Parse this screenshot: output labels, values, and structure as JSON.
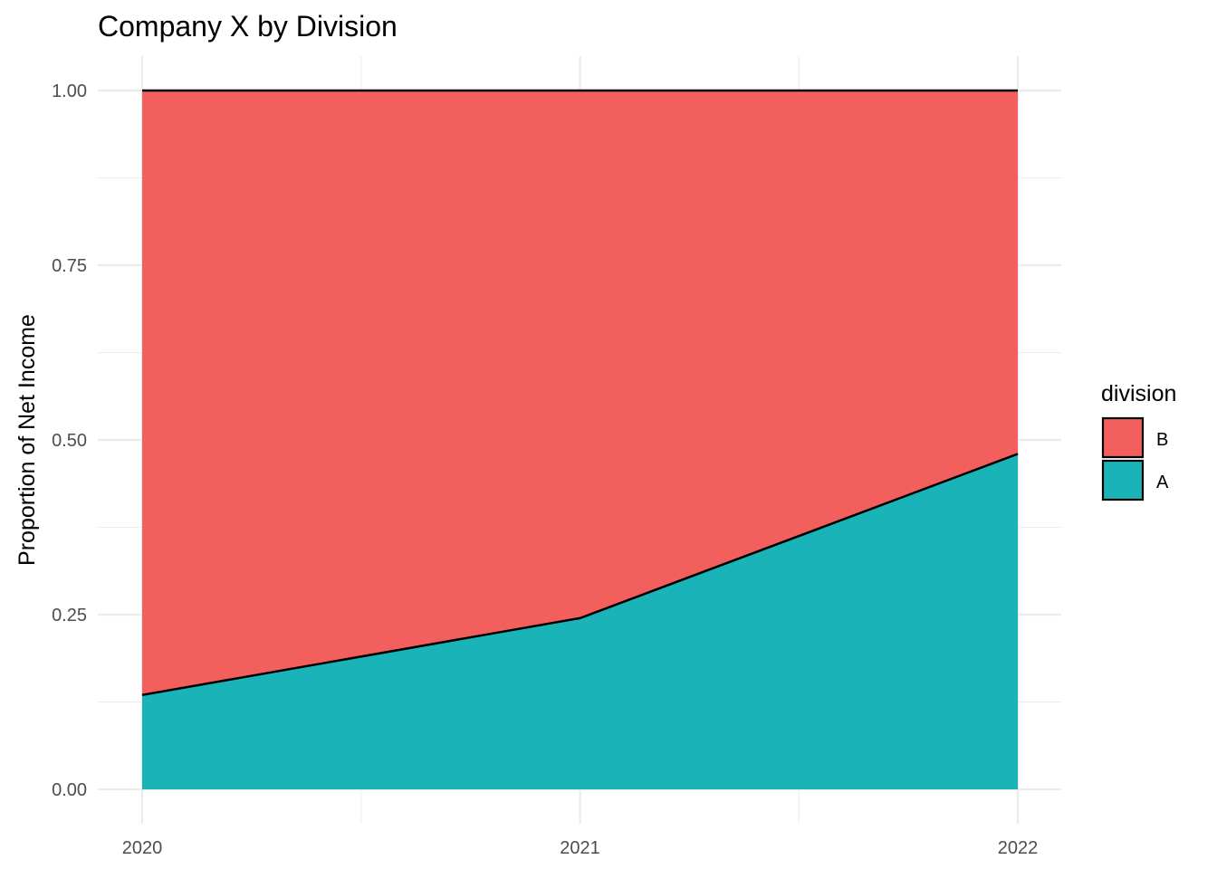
{
  "chart_data": {
    "type": "area",
    "title": "Company X by Division",
    "xlabel": "",
    "ylabel": "Proportion of Net Income",
    "x": [
      2020,
      2021,
      2022
    ],
    "x_tick_labels": [
      "2020",
      "2021",
      "2022"
    ],
    "ylim": [
      0,
      1
    ],
    "y_ticks": [
      0,
      0.25,
      0.5,
      0.75,
      1
    ],
    "y_tick_labels": [
      "0.00",
      "0.25",
      "0.50",
      "0.75",
      "1.00"
    ],
    "stacked": true,
    "grid": true,
    "legend": {
      "title": "division",
      "position": "right"
    },
    "series": [
      {
        "name": "A",
        "values": [
          0.135,
          0.245,
          0.48
        ],
        "color": "#19B3B8"
      },
      {
        "name": "B",
        "values": [
          0.865,
          0.755,
          0.52
        ],
        "color": "#F25F5C"
      }
    ]
  }
}
